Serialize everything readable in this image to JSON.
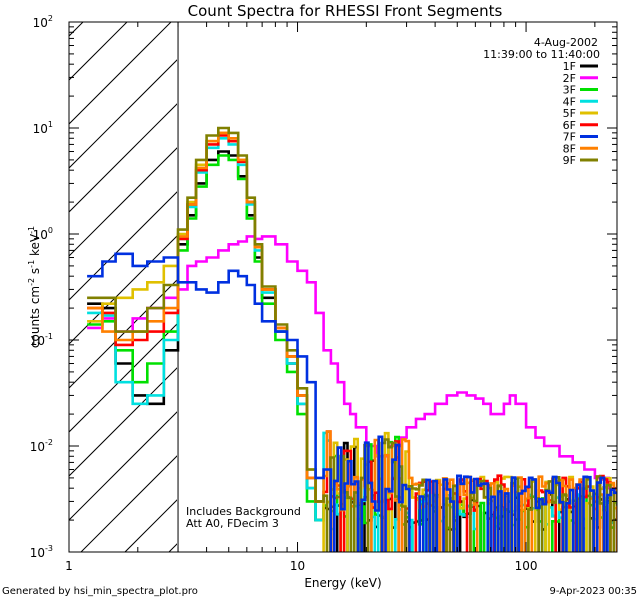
{
  "chart_data": {
    "type": "line",
    "title": "Count Spectra for RHESSI Front Segments",
    "xlabel": "Energy (keV)",
    "ylabel_parts": {
      "a": "counts cm",
      "b": "-2",
      "c": " s",
      "d": "-1",
      "e": " keV",
      "f": "-1"
    },
    "x_scale": "log",
    "y_scale": "log",
    "xlim": [
      1,
      250
    ],
    "ylim": [
      0.001,
      100
    ],
    "x_ticks": [
      {
        "v": 1,
        "label": "1"
      },
      {
        "v": 10,
        "label": "10"
      },
      {
        "v": 100,
        "label": "100"
      }
    ],
    "y_ticks": [
      {
        "v": 0.001,
        "base": "10",
        "exp": "-3"
      },
      {
        "v": 0.01,
        "base": "10",
        "exp": "-2"
      },
      {
        "v": 0.1,
        "base": "10",
        "exp": "-1"
      },
      {
        "v": 1,
        "base": "10",
        "exp": "0"
      },
      {
        "v": 10,
        "base": "10",
        "exp": "1"
      },
      {
        "v": 100,
        "base": "10",
        "exp": "2"
      }
    ],
    "date": "4-Aug-2002",
    "time_range": "11:39:00 to 11:40:00",
    "notes": [
      "Includes Background",
      "Att A0, FDecim 3"
    ],
    "excluded_region": [
      1,
      3
    ],
    "series": [
      {
        "name": "1F",
        "color": "#000000",
        "style": "burst",
        "low": [
          0.22,
          0.2,
          0.06,
          0.03,
          0.025,
          0.08
        ],
        "mid": [
          0.8,
          1.5,
          3.0,
          5.0,
          6.0,
          5.5,
          3.5,
          1.5,
          0.6,
          0.25,
          0.12,
          0.06,
          0.025,
          0.004,
          0.002
        ],
        "tail": 0.002
      },
      {
        "name": "2F",
        "color": "#ff00ff",
        "style": "broad",
        "low": [
          0.13,
          0.16,
          0.12,
          0.16,
          0.2,
          0.25
        ],
        "pts": [
          [
            3.0,
            0.3
          ],
          [
            3.3,
            0.5
          ],
          [
            3.6,
            0.55
          ],
          [
            4.0,
            0.6
          ],
          [
            4.5,
            0.7
          ],
          [
            5.0,
            0.8
          ],
          [
            5.5,
            0.85
          ],
          [
            6.0,
            0.95
          ],
          [
            6.5,
            0.9
          ],
          [
            7.0,
            0.95
          ],
          [
            8.0,
            0.8
          ],
          [
            9.0,
            0.55
          ],
          [
            10,
            0.45
          ],
          [
            11,
            0.35
          ],
          [
            12,
            0.18
          ],
          [
            13,
            0.08
          ],
          [
            14,
            0.06
          ],
          [
            15,
            0.04
          ],
          [
            16,
            0.025
          ],
          [
            17,
            0.02
          ],
          [
            18,
            0.015
          ],
          [
            20,
            0.01
          ],
          [
            22,
            0.008
          ],
          [
            25,
            0.01
          ],
          [
            28,
            0.012
          ],
          [
            30,
            0.015
          ],
          [
            33,
            0.018
          ],
          [
            36,
            0.02
          ],
          [
            40,
            0.025
          ],
          [
            45,
            0.03
          ],
          [
            50,
            0.032
          ],
          [
            55,
            0.03
          ],
          [
            60,
            0.028
          ],
          [
            65,
            0.025
          ],
          [
            70,
            0.02
          ],
          [
            75,
            0.02
          ],
          [
            80,
            0.025
          ],
          [
            85,
            0.03
          ],
          [
            90,
            0.025
          ],
          [
            100,
            0.015
          ],
          [
            110,
            0.012
          ],
          [
            120,
            0.01
          ],
          [
            140,
            0.008
          ],
          [
            160,
            0.007
          ],
          [
            180,
            0.006
          ],
          [
            200,
            0.005
          ],
          [
            230,
            0.004
          ],
          [
            250,
            0.005
          ]
        ]
      },
      {
        "name": "3F",
        "color": "#00e000",
        "style": "burst",
        "low": [
          0.14,
          0.15,
          0.08,
          0.04,
          0.06,
          0.12
        ],
        "mid": [
          0.7,
          1.4,
          2.8,
          4.5,
          5.5,
          5.0,
          3.3,
          1.4,
          0.55,
          0.22,
          0.1,
          0.05,
          0.02,
          0.003,
          0.002
        ],
        "tail": 0.002
      },
      {
        "name": "4F",
        "color": "#00e0e0",
        "style": "burst",
        "low": [
          0.18,
          0.17,
          0.04,
          0.025,
          0.03,
          0.1
        ],
        "mid": [
          0.9,
          1.8,
          3.8,
          6.5,
          8.0,
          7.0,
          4.5,
          1.9,
          0.7,
          0.28,
          0.12,
          0.06,
          0.025,
          0.004,
          0.002
        ],
        "tail": 0.002
      },
      {
        "name": "5F",
        "color": "#e0c000",
        "style": "burst",
        "low": [
          0.15,
          0.22,
          0.25,
          0.3,
          0.35,
          0.5
        ],
        "mid": [
          1.0,
          2.0,
          4.5,
          7.5,
          9.0,
          8.0,
          5.0,
          2.0,
          0.75,
          0.3,
          0.13,
          0.07,
          0.03,
          0.006,
          0.003
        ],
        "tail": 0.003
      },
      {
        "name": "6F",
        "color": "#ff0000",
        "style": "burst",
        "low": [
          0.2,
          0.18,
          0.09,
          0.1,
          0.12,
          0.18
        ],
        "mid": [
          0.9,
          1.9,
          4.0,
          7.0,
          8.5,
          7.5,
          4.8,
          2.0,
          0.75,
          0.3,
          0.13,
          0.07,
          0.03,
          0.005,
          0.003
        ],
        "tail": 0.003
      },
      {
        "name": "7F",
        "color": "#0030e0",
        "style": "blue",
        "low": [
          0.4,
          0.55,
          0.65,
          0.5,
          0.55,
          0.6
        ],
        "pts": [
          [
            3.0,
            0.35
          ],
          [
            3.3,
            0.35
          ],
          [
            3.6,
            0.3
          ],
          [
            4.0,
            0.28
          ],
          [
            4.5,
            0.35
          ],
          [
            5.0,
            0.45
          ],
          [
            5.5,
            0.4
          ],
          [
            6.0,
            0.33
          ],
          [
            6.5,
            0.22
          ],
          [
            7.0,
            0.15
          ],
          [
            8.0,
            0.12
          ],
          [
            9.0,
            0.1
          ],
          [
            10,
            0.07
          ],
          [
            11,
            0.04
          ],
          [
            12,
            0.005
          ],
          [
            13,
            0.006
          ],
          [
            14,
            0.004
          ]
        ],
        "tail": 0.003
      },
      {
        "name": "8F",
        "color": "#ff8000",
        "style": "burst",
        "low": [
          0.2,
          0.12,
          0.1,
          0.12,
          0.15,
          0.2
        ],
        "mid": [
          0.95,
          1.9,
          4.2,
          7.5,
          9.0,
          8.0,
          5.0,
          2.0,
          0.75,
          0.3,
          0.13,
          0.07,
          0.03,
          0.005,
          0.003
        ],
        "tail": 0.003
      },
      {
        "name": "9F",
        "color": "#808000",
        "style": "burst",
        "low": [
          0.25,
          0.25,
          0.12,
          0.12,
          0.2,
          0.33
        ],
        "mid": [
          1.1,
          2.2,
          5.0,
          8.5,
          10.0,
          9.0,
          5.5,
          2.2,
          0.8,
          0.32,
          0.14,
          0.08,
          0.035,
          0.006,
          0.003
        ],
        "tail": 0.003
      }
    ]
  },
  "footer": {
    "generator": "Generated by hsi_min_spectra_plot.pro",
    "timestamp": "9-Apr-2023 00:35"
  }
}
